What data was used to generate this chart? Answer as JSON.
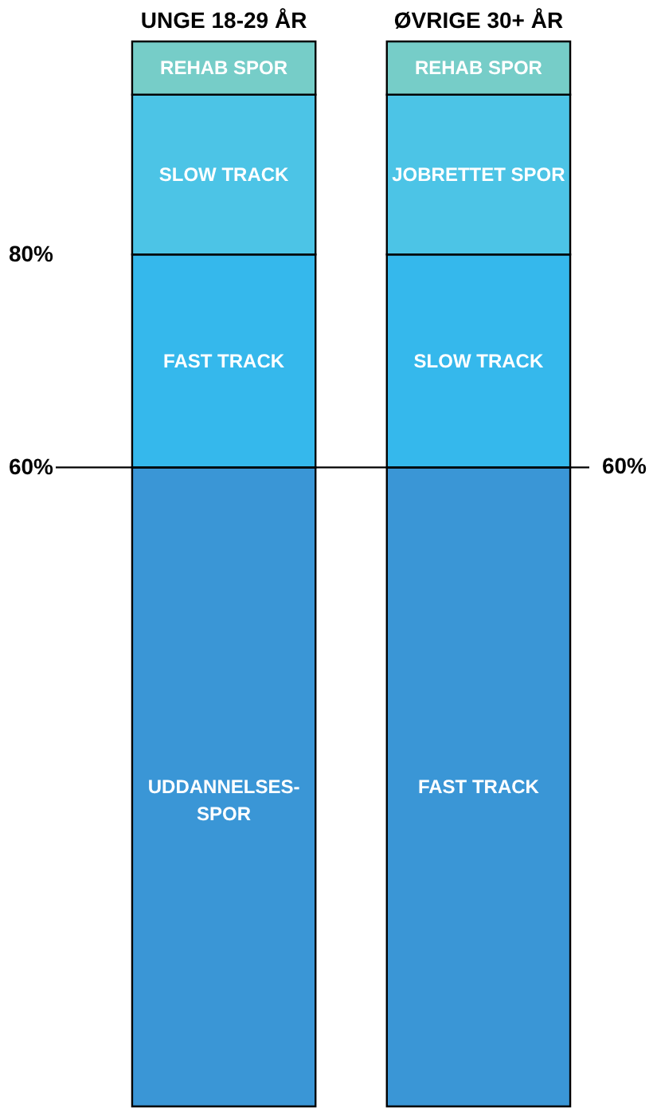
{
  "chart_data": {
    "type": "bar",
    "stacked": true,
    "categories": [
      "UNGE 18-29 ÅR",
      "ØVRIGE 30+ ÅR"
    ],
    "series": [
      {
        "color": "#3a96d6",
        "values": [
          60,
          60
        ]
      },
      {
        "color": "#35b8ec",
        "values": [
          20,
          20
        ]
      },
      {
        "color": "#4cc4e6",
        "values": [
          15,
          15
        ]
      },
      {
        "color": "#76cdc8",
        "values": [
          5,
          5
        ]
      }
    ],
    "ylim": [
      0,
      100
    ],
    "yticks": [
      {
        "value": 60,
        "label": "60%"
      },
      {
        "value": 80,
        "label": "80%"
      }
    ],
    "ref_lines": [
      {
        "axis": "y",
        "value": 60,
        "label": "60%",
        "color": "#000000"
      }
    ],
    "grid": false,
    "annotations": [
      "UDDANNELSES-\nSPOR",
      "FAST TRACK",
      "SLOW TRACK",
      "REHAB SPOR",
      "FAST TRACK",
      "SLOW TRACK",
      "JOBRETTET SPOR",
      "REHAB SPOR"
    ]
  }
}
